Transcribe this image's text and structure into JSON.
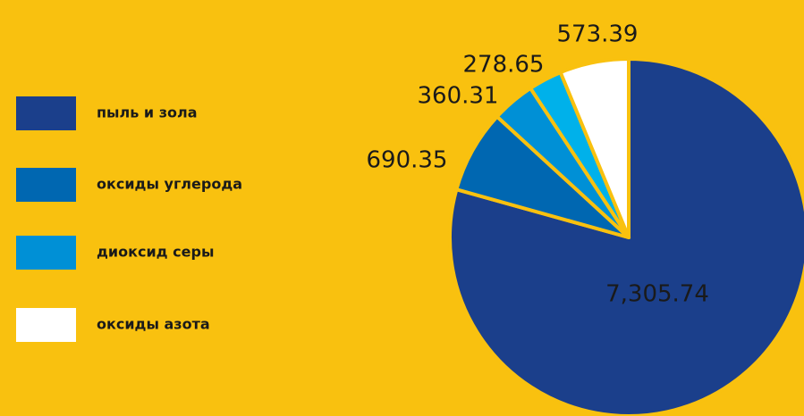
{
  "chart_data": {
    "type": "pie",
    "categories": [
      "пыль и зола",
      "оксиды углерода",
      "диоксид серы",
      null,
      "оксиды азота"
    ],
    "values": [
      7305.74,
      690.35,
      360.31,
      278.65,
      573.39
    ],
    "value_labels": [
      "7,305.74",
      "690.35",
      "360.31",
      "278.65",
      "573.39"
    ],
    "colors": [
      "#1b3f8b",
      "#0067b1",
      "#0090d6",
      "#00b1ea",
      "#ffffff"
    ],
    "legend": "left"
  }
}
